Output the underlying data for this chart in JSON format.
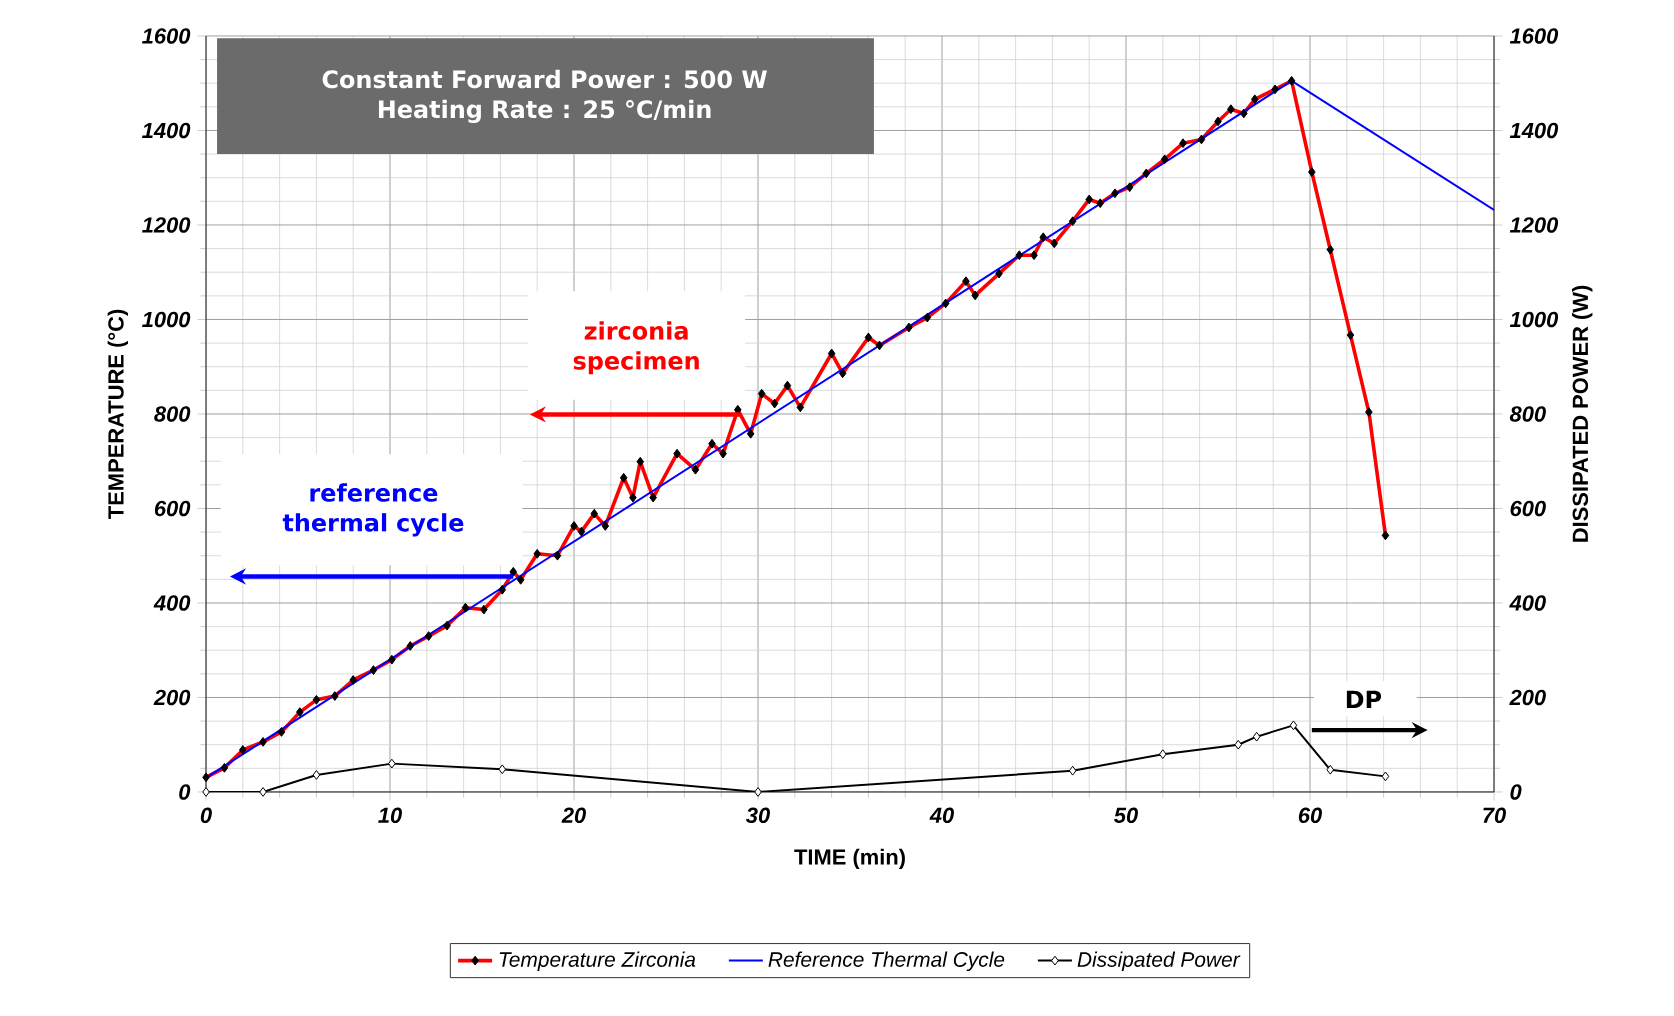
{
  "chart_data": {
    "type": "line",
    "xlabel": "TIME (min)",
    "ylabel": "TEMPERATURE (°C)",
    "y2label": "DISSIPATED POWER (W)",
    "xlim": [
      0,
      70
    ],
    "xticks": [
      0,
      10,
      20,
      30,
      40,
      50,
      60,
      70
    ],
    "ylim": [
      0,
      1600
    ],
    "yticks": [
      0,
      200,
      400,
      600,
      800,
      1000,
      1200,
      1400,
      1600
    ],
    "y2lim": [
      0,
      1600
    ],
    "y2ticks": [
      0,
      200,
      400,
      600,
      800,
      1000,
      1200,
      1400,
      1600
    ],
    "grid": true,
    "legend": "bottom",
    "line_style": "solid",
    "annotations": [
      "Constant Forward Power : 500 W",
      "Heating Rate : 25 °C/min",
      "zirconia specimen",
      "reference thermal cycle",
      "DP"
    ],
    "series": [
      {
        "name": "Temperature Zirconia",
        "color": "#ff0000",
        "marker": "diamond",
        "x": [
          0,
          1.0,
          2.0,
          3.1,
          4.1,
          5.1,
          6.0,
          7.0,
          8.0,
          9.1,
          10.1,
          11.1,
          12.1,
          13.1,
          14.1,
          15.1,
          16.1,
          16.7,
          17.1,
          18.0,
          19.1,
          20.0,
          20.4,
          21.1,
          21.7,
          22.7,
          23.2,
          23.6,
          24.3,
          25.6,
          26.6,
          27.5,
          28.1,
          28.9,
          29.6,
          30.2,
          30.9,
          31.6,
          32.3,
          34.0,
          34.6,
          36.0,
          36.6,
          38.2,
          39.2,
          40.2,
          41.3,
          41.8,
          43.1,
          44.2,
          45.0,
          45.5,
          46.1,
          47.1,
          48.0,
          48.6,
          49.4,
          50.2,
          51.1,
          52.1,
          53.1,
          54.1,
          55.0,
          55.7,
          56.4,
          57.0,
          58.1,
          59.0,
          60.1,
          61.1,
          62.2,
          63.2,
          64.1
        ],
        "values": [
          31,
          51,
          89,
          106,
          127,
          169,
          195,
          203,
          237,
          258,
          280,
          309,
          330,
          352,
          390,
          386,
          428,
          466,
          449,
          504,
          500,
          563,
          551,
          589,
          563,
          665,
          623,
          699,
          623,
          716,
          682,
          737,
          716,
          809,
          758,
          843,
          822,
          860,
          814,
          928,
          886,
          962,
          945,
          983,
          1004,
          1034,
          1081,
          1051,
          1097,
          1136,
          1136,
          1174,
          1161,
          1208,
          1254,
          1246,
          1267,
          1280,
          1309,
          1339,
          1373,
          1381,
          1419,
          1445,
          1436,
          1466,
          1487,
          1505,
          1312,
          1148,
          967,
          804,
          543
        ]
      },
      {
        "name": "Reference Thermal Cycle",
        "color": "#0000ff",
        "marker": "none",
        "x": [
          0,
          59,
          70
        ],
        "values": [
          30,
          1505,
          1232
        ]
      },
      {
        "name": "Dissipated Power",
        "color": "#000000",
        "marker": "diamond",
        "axis": "y2",
        "x": [
          0,
          3.1,
          6.0,
          10.1,
          16.1,
          30,
          47.1,
          52.0,
          56.1,
          57.1,
          59.1,
          61.1,
          64.1
        ],
        "values": [
          0,
          0,
          36,
          60,
          48,
          0,
          45,
          80,
          100,
          117,
          141,
          47,
          33
        ]
      }
    ]
  }
}
